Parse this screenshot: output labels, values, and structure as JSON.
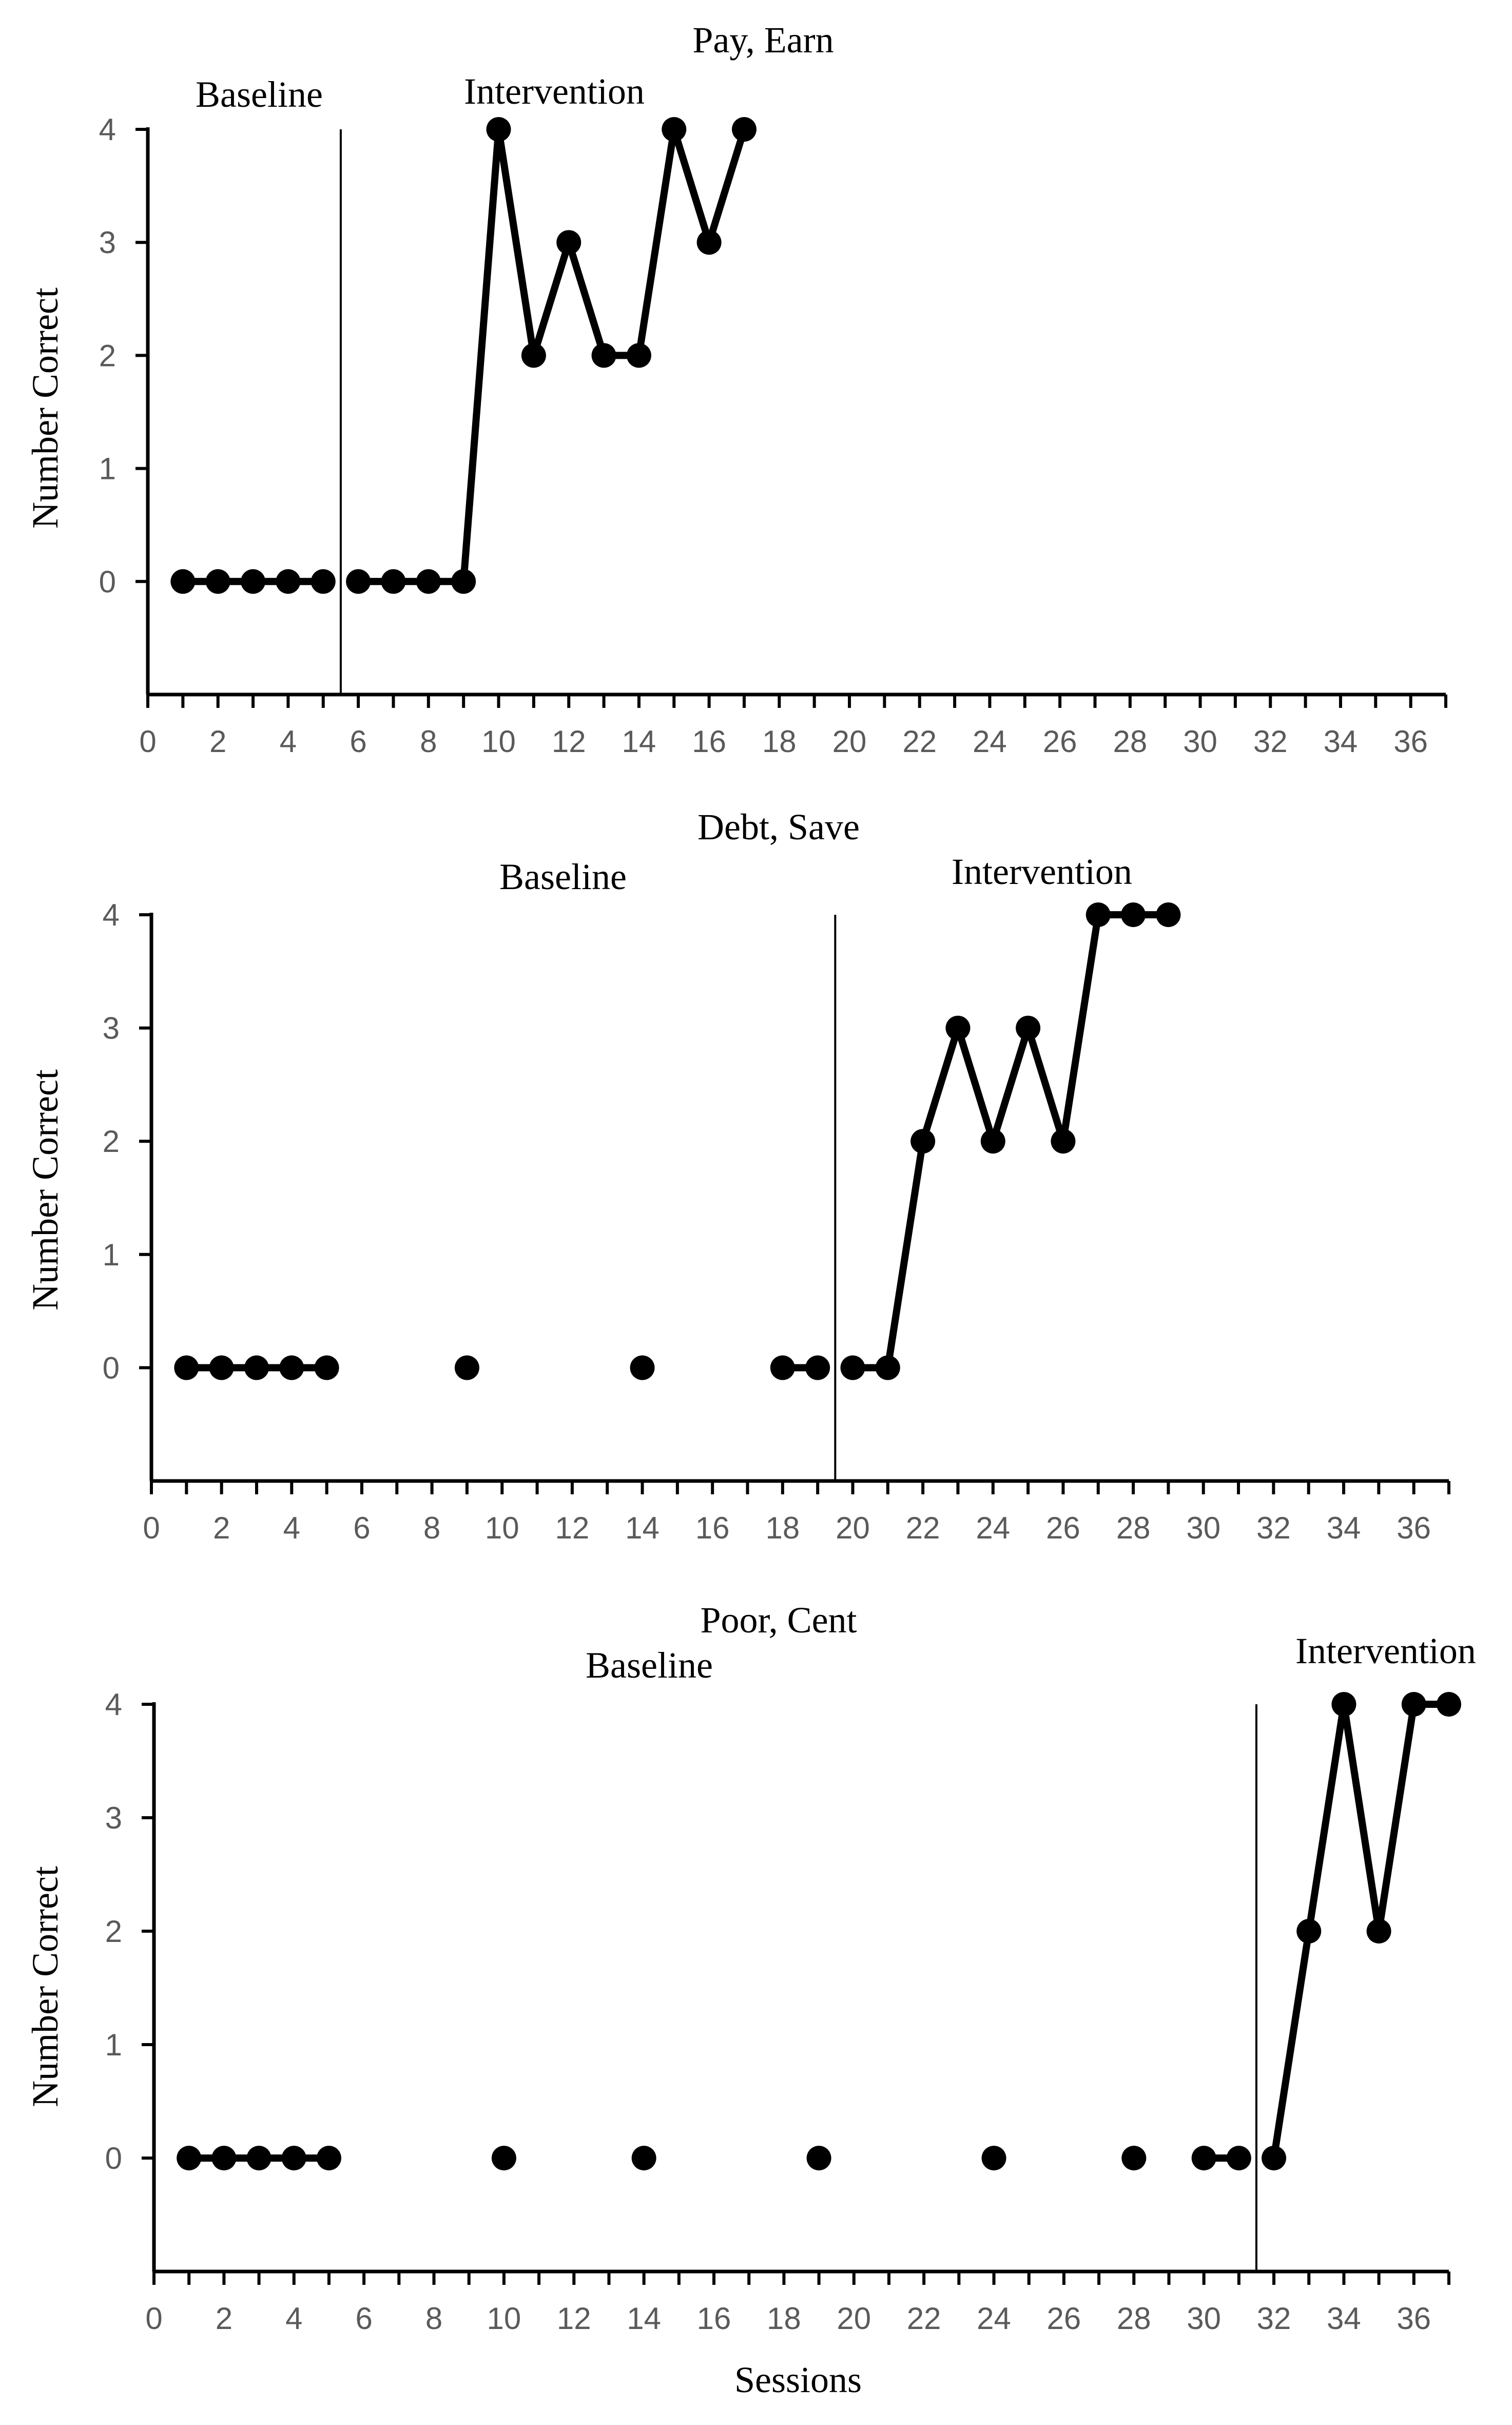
{
  "chart_data": [
    {
      "type": "line",
      "title": "Pay, Earn",
      "ylabel": "Number Correct",
      "xlabel": "",
      "xlim": [
        0,
        37
      ],
      "ylim": [
        -1,
        4
      ],
      "x_ticks": [
        0,
        2,
        4,
        6,
        8,
        10,
        12,
        14,
        16,
        18,
        20,
        22,
        24,
        26,
        28,
        30,
        32,
        34,
        36
      ],
      "y_ticks": [
        0,
        1,
        2,
        3,
        4
      ],
      "phase_labels": [
        "Baseline",
        "Intervention"
      ],
      "phase_change_after_session": 5.5,
      "segments": [
        [
          [
            1,
            0
          ],
          [
            2,
            0
          ],
          [
            3,
            0
          ],
          [
            4,
            0
          ],
          [
            5,
            0
          ]
        ],
        [
          [
            6,
            0
          ],
          [
            7,
            0
          ],
          [
            8,
            0
          ],
          [
            9,
            0
          ],
          [
            10,
            4
          ],
          [
            11,
            2
          ],
          [
            12,
            3
          ],
          [
            13,
            2
          ],
          [
            14,
            2
          ],
          [
            15,
            4
          ],
          [
            16,
            3
          ],
          [
            17,
            4
          ]
        ]
      ]
    },
    {
      "type": "line",
      "title": "Debt, Save",
      "ylabel": "Number Correct",
      "xlabel": "",
      "xlim": [
        0,
        37
      ],
      "ylim": [
        -1,
        4
      ],
      "x_ticks": [
        0,
        2,
        4,
        6,
        8,
        10,
        12,
        14,
        16,
        18,
        20,
        22,
        24,
        26,
        28,
        30,
        32,
        34,
        36
      ],
      "y_ticks": [
        0,
        1,
        2,
        3,
        4
      ],
      "phase_labels": [
        "Baseline",
        "Intervention"
      ],
      "phase_change_after_session": 19.5,
      "segments": [
        [
          [
            1,
            0
          ],
          [
            2,
            0
          ],
          [
            3,
            0
          ],
          [
            4,
            0
          ],
          [
            5,
            0
          ]
        ],
        [
          [
            9,
            0
          ]
        ],
        [
          [
            14,
            0
          ]
        ],
        [
          [
            18,
            0
          ],
          [
            19,
            0
          ]
        ],
        [
          [
            20,
            0
          ],
          [
            21,
            0
          ],
          [
            22,
            2
          ],
          [
            23,
            3
          ],
          [
            24,
            2
          ],
          [
            25,
            3
          ],
          [
            26,
            2
          ],
          [
            27,
            4
          ],
          [
            28,
            4
          ],
          [
            29,
            4
          ]
        ]
      ]
    },
    {
      "type": "line",
      "title": "Poor, Cent",
      "ylabel": "Number Correct",
      "xlabel": "Sessions",
      "xlim": [
        0,
        37
      ],
      "ylim": [
        -1,
        4
      ],
      "x_ticks": [
        0,
        2,
        4,
        6,
        8,
        10,
        12,
        14,
        16,
        18,
        20,
        22,
        24,
        26,
        28,
        30,
        32,
        34,
        36
      ],
      "y_ticks": [
        0,
        1,
        2,
        3,
        4
      ],
      "phase_labels": [
        "Baseline",
        "Intervention"
      ],
      "phase_change_after_session": 31.5,
      "segments": [
        [
          [
            1,
            0
          ],
          [
            2,
            0
          ],
          [
            3,
            0
          ],
          [
            4,
            0
          ],
          [
            5,
            0
          ]
        ],
        [
          [
            10,
            0
          ]
        ],
        [
          [
            14,
            0
          ]
        ],
        [
          [
            19,
            0
          ]
        ],
        [
          [
            24,
            0
          ]
        ],
        [
          [
            28,
            0
          ]
        ],
        [
          [
            30,
            0
          ],
          [
            31,
            0
          ]
        ],
        [
          [
            32,
            0
          ],
          [
            33,
            2
          ],
          [
            34,
            4
          ],
          [
            35,
            2
          ],
          [
            36,
            4
          ],
          [
            37,
            4
          ]
        ]
      ]
    }
  ]
}
